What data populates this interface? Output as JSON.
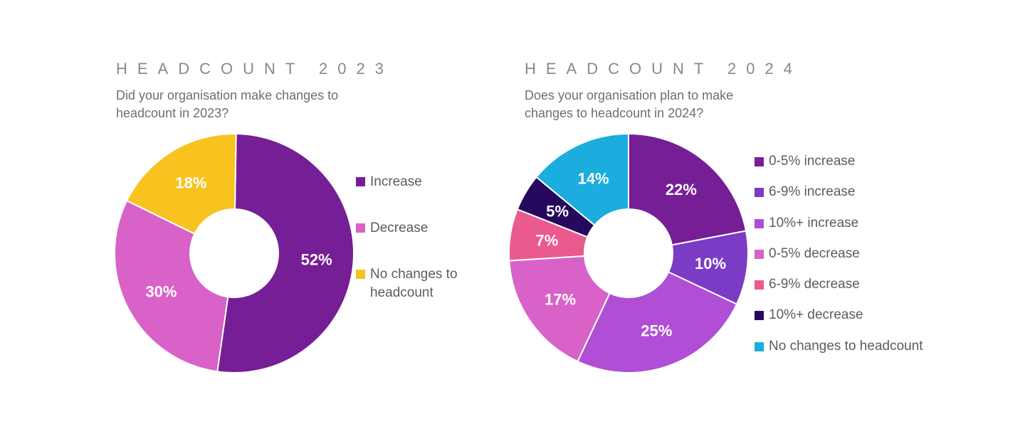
{
  "chart_data": [
    {
      "type": "pie",
      "variant": "donut",
      "title": "HEADCOUNT 2023",
      "subtitle": "Did your organisation make changes to\nheadcount in 2023?",
      "categories": [
        "Increase",
        "Decrease",
        "No changes to headcount"
      ],
      "legend_labels": [
        "Increase",
        "Decrease",
        "No changes to\nheadcount"
      ],
      "values": [
        52,
        30,
        18
      ],
      "value_labels": [
        "52%",
        "30%",
        "18%"
      ],
      "colors": [
        "#761e96",
        "#d862c8",
        "#f8c21f"
      ],
      "legend": "right"
    },
    {
      "type": "pie",
      "variant": "donut",
      "title": "HEADCOUNT 2024",
      "subtitle": "Does your organisation plan to make\nchanges to headcount in 2024?",
      "categories": [
        "0-5% increase",
        "6-9% increase",
        "10%+ increase",
        "0-5% decrease",
        "6-9% decrease",
        "10%+ decrease",
        "No changes to headcount"
      ],
      "legend_labels": [
        "0-5% increase",
        "6-9% increase",
        "10%+ increase",
        "0-5% decrease",
        "6-9% decrease",
        "10%+ decrease",
        "No changes to headcount"
      ],
      "values": [
        22,
        10,
        25,
        17,
        7,
        5,
        14
      ],
      "value_labels": [
        "22%",
        "10%",
        "25%",
        "17%",
        "7%",
        "5%",
        "14%"
      ],
      "colors": [
        "#761e96",
        "#7b3bc4",
        "#b04ed6",
        "#d862c8",
        "#ea5a8e",
        "#24095e",
        "#1badde"
      ],
      "legend": "right"
    }
  ]
}
